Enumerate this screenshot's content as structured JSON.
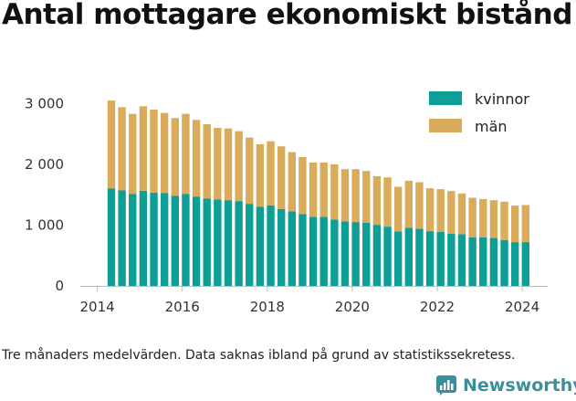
{
  "title": "Antal mottagare ekonomiskt bistånd",
  "footnote": "Tre månaders medelvärden. Data saknas ibland på grund av statistikssekretess.",
  "brand": {
    "name": "Newsworthy"
  },
  "chart_data": {
    "type": "bar",
    "stacked": true,
    "title": "Antal mottagare ekonomiskt bistånd",
    "xlabel": "",
    "ylabel": "",
    "ylim": [
      0,
      3200
    ],
    "xlim": [
      2013.6,
      2024.6
    ],
    "yticks": [
      0,
      1000,
      2000,
      3000
    ],
    "ytick_labels": [
      "0",
      "1 000",
      "2 000",
      "3 000"
    ],
    "xticks": [
      2014,
      2016,
      2018,
      2020,
      2022,
      2024
    ],
    "xtick_labels": [
      "2014",
      "2016",
      "2018",
      "2020",
      "2022",
      "2024"
    ],
    "grid": false,
    "legend_position": "top-right",
    "colors": {
      "kvinnor": "#0d9e96",
      "man": "#d9ab5a"
    },
    "x": [
      2014.33,
      2014.58,
      2014.83,
      2015.08,
      2015.33,
      2015.58,
      2015.83,
      2016.08,
      2016.33,
      2016.58,
      2016.83,
      2017.08,
      2017.33,
      2017.58,
      2017.83,
      2018.08,
      2018.33,
      2018.58,
      2018.83,
      2019.08,
      2019.33,
      2019.58,
      2019.83,
      2020.08,
      2020.33,
      2020.58,
      2020.83,
      2021.08,
      2021.33,
      2021.58,
      2021.83,
      2022.08,
      2022.33,
      2022.58,
      2022.83,
      2023.08,
      2023.33,
      2023.58,
      2023.83,
      2024.08
    ],
    "series": [
      {
        "name": "kvinnor",
        "color": "#0d9e96",
        "values": [
          1600,
          1570,
          1510,
          1565,
          1535,
          1525,
          1480,
          1510,
          1470,
          1440,
          1420,
          1410,
          1395,
          1350,
          1300,
          1325,
          1265,
          1225,
          1180,
          1135,
          1135,
          1090,
          1060,
          1050,
          1040,
          1005,
          975,
          895,
          955,
          940,
          900,
          890,
          860,
          850,
          800,
          800,
          790,
          755,
          720,
          720
        ]
      },
      {
        "name": "män",
        "color": "#d9ab5a",
        "values": [
          1450,
          1370,
          1320,
          1390,
          1365,
          1320,
          1280,
          1320,
          1260,
          1220,
          1180,
          1180,
          1150,
          1090,
          1030,
          1055,
          1030,
          975,
          940,
          895,
          895,
          910,
          860,
          870,
          850,
          800,
          810,
          735,
          775,
          765,
          705,
          700,
          700,
          670,
          650,
          630,
          620,
          630,
          600,
          610
        ]
      }
    ]
  }
}
